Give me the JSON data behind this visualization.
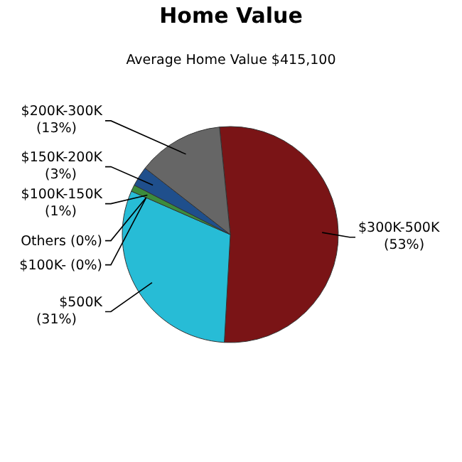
{
  "chart_data": {
    "type": "pie",
    "title": "Home Value",
    "subtitle": "Average Home Value  $415,100",
    "categories": [
      "$300K-500K",
      "$500K",
      "Others",
      "$100K-",
      "$100K-150K",
      "$150K-200K",
      "$200K-300K"
    ],
    "values": [
      53,
      31,
      0,
      0,
      1,
      3,
      13
    ],
    "value_labels": [
      "(53%)",
      "(31%)",
      "(0%)",
      "(0%)",
      "(1%)",
      "(3%)",
      "(13%)"
    ],
    "colors": [
      "#7a1416",
      "#27bcd6",
      null,
      null,
      "#3c8c3c",
      "#1f4f8c",
      "#666666"
    ]
  }
}
